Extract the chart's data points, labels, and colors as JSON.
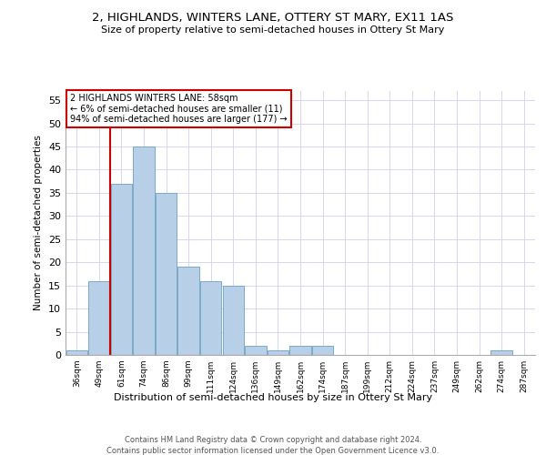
{
  "title": "2, HIGHLANDS, WINTERS LANE, OTTERY ST MARY, EX11 1AS",
  "subtitle": "Size of property relative to semi-detached houses in Ottery St Mary",
  "xlabel": "Distribution of semi-detached houses by size in Ottery St Mary",
  "ylabel": "Number of semi-detached properties",
  "categories": [
    "36sqm",
    "49sqm",
    "61sqm",
    "74sqm",
    "86sqm",
    "99sqm",
    "111sqm",
    "124sqm",
    "136sqm",
    "149sqm",
    "162sqm",
    "174sqm",
    "187sqm",
    "199sqm",
    "212sqm",
    "224sqm",
    "237sqm",
    "249sqm",
    "262sqm",
    "274sqm",
    "287sqm"
  ],
  "values": [
    1,
    16,
    37,
    45,
    35,
    19,
    16,
    15,
    2,
    1,
    2,
    2,
    0,
    0,
    0,
    0,
    0,
    0,
    0,
    1,
    0
  ],
  "bar_color": "#b8cfe8",
  "bar_edge_color": "#7aaac8",
  "ylim": [
    0,
    57
  ],
  "yticks": [
    0,
    5,
    10,
    15,
    20,
    25,
    30,
    35,
    40,
    45,
    50,
    55
  ],
  "annotation_title": "2 HIGHLANDS WINTERS LANE: 58sqm",
  "annotation_line1": "← 6% of semi-detached houses are smaller (11)",
  "annotation_line2": "94% of semi-detached houses are larger (177) →",
  "annotation_box_color": "#ffffff",
  "annotation_box_edge": "#cc0000",
  "red_line_x": 1.5,
  "footer1": "Contains HM Land Registry data © Crown copyright and database right 2024.",
  "footer2": "Contains public sector information licensed under the Open Government Licence v3.0.",
  "background_color": "#ffffff",
  "grid_color": "#d0d0f0"
}
